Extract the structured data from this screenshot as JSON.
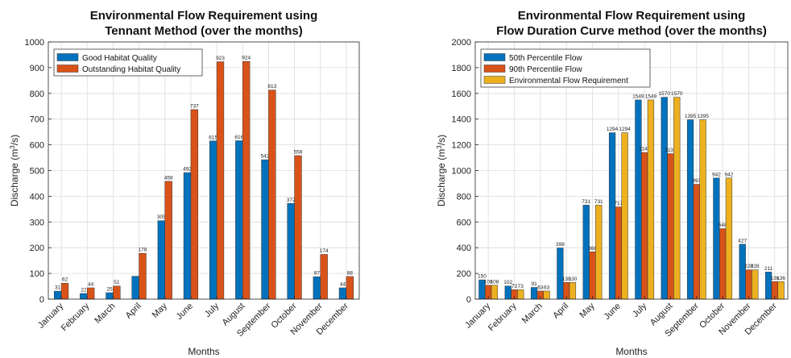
{
  "chart_data": [
    {
      "type": "bar",
      "title_line1": "Environmental Flow Requirement using",
      "title_line2": "Tennant Method (over the months)",
      "xlabel": "Months",
      "ylabel_main": "Discharge (m",
      "ylabel_sup": "3",
      "ylabel_tail": "/s)",
      "ylim": [
        0,
        1000
      ],
      "yticks": [
        0,
        100,
        200,
        300,
        400,
        500,
        600,
        700,
        800,
        900,
        1000
      ],
      "grid": true,
      "legend_position": "top-left",
      "categories": [
        "January",
        "February",
        "March",
        "April",
        "May",
        "June",
        "July",
        "August",
        "September",
        "October",
        "November",
        "December"
      ],
      "series": [
        {
          "name": "Good Habitat Quality",
          "color": "#0072BD",
          "values": [
            31,
            22,
            25,
            89,
            305,
            492,
            615,
            616,
            542,
            372,
            87,
            44
          ],
          "labels": [
            "31",
            "22",
            "25",
            "",
            "305",
            "492",
            "615",
            "616",
            "542",
            "372",
            "87",
            "44"
          ]
        },
        {
          "name": "Outstanding Habitat Quality",
          "color": "#D95319",
          "values": [
            62,
            44,
            51,
            178,
            458,
            737,
            923,
            924,
            813,
            558,
            174,
            88
          ],
          "labels": [
            "62",
            "44",
            "51",
            "178",
            "458",
            "737",
            "923",
            "924",
            "813",
            "558",
            "174",
            "88"
          ]
        }
      ]
    },
    {
      "type": "bar",
      "title_line1": "Environmental Flow Requirement using",
      "title_line2": "Flow Duration Curve method (over the months)",
      "xlabel": "Months",
      "ylabel_main": "Discharge (m",
      "ylabel_sup": "3",
      "ylabel_tail": "/s)",
      "ylim": [
        0,
        2000
      ],
      "yticks": [
        0,
        200,
        400,
        600,
        800,
        1000,
        1200,
        1400,
        1600,
        1800,
        2000
      ],
      "grid": true,
      "legend_position": "top-left",
      "categories": [
        "January",
        "February",
        "March",
        "April",
        "May",
        "June",
        "July",
        "August",
        "September",
        "October",
        "November",
        "December"
      ],
      "series": [
        {
          "name": "50th Percentile Flow",
          "color": "#0072BD",
          "values": [
            150,
            102,
            91,
            398,
            731,
            1294,
            1549,
            1570,
            1395,
            942,
            427,
            211
          ],
          "labels": [
            "150",
            "102",
            "91",
            "398",
            "731",
            "1294",
            "1549",
            "1570",
            "1395",
            "942",
            "427",
            "211"
          ]
        },
        {
          "name": "90th Percentile Flow",
          "color": "#D95319",
          "values": [
            108,
            73,
            63,
            130,
            368,
            717,
            1140,
            1131,
            893,
            548,
            228,
            136
          ],
          "labels": [
            "108",
            "73",
            "63",
            "130",
            "368",
            "717",
            "1140",
            "1131",
            "893",
            "548",
            "228",
            "136"
          ]
        },
        {
          "name": "Environmental Flow Requirement",
          "color": "#EDB120",
          "values": [
            108,
            73,
            63,
            130,
            731,
            1294,
            1549,
            1570,
            1395,
            942,
            228,
            136
          ],
          "labels": [
            "108",
            "73",
            "63",
            "130",
            "731",
            "1294",
            "1549",
            "1570",
            "1395",
            "942",
            "228",
            "136"
          ]
        }
      ]
    }
  ]
}
